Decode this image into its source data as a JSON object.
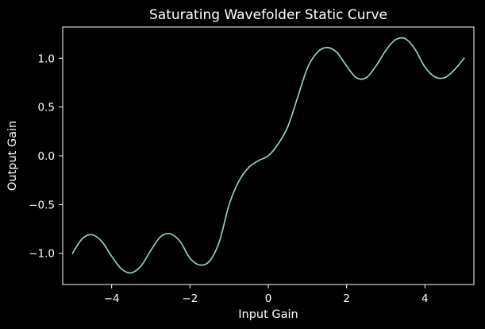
{
  "chart_data": {
    "type": "line",
    "title": "Saturating Wavefolder Static Curve",
    "xlabel": "Input Gain",
    "ylabel": "Output Gain",
    "xlim": [
      -5.25,
      5.25
    ],
    "ylim": [
      -1.32,
      1.32
    ],
    "xticks": [
      -4,
      -2,
      0,
      2,
      4
    ],
    "xtick_labels": [
      "−4",
      "−2",
      "0",
      "2",
      "4"
    ],
    "yticks": [
      -1.0,
      -0.5,
      0.0,
      0.5,
      1.0
    ],
    "ytick_labels": [
      "−1.0",
      "−0.5",
      "0.0",
      "0.5",
      "1.0"
    ],
    "grid": false,
    "series": [
      {
        "color": "#8dd3c7",
        "x": [
          -5.0,
          -4.75,
          -4.5,
          -4.25,
          -4.0,
          -3.75,
          -3.5,
          -3.25,
          -3.0,
          -2.75,
          -2.5,
          -2.25,
          -2.0,
          -1.75,
          -1.5,
          -1.25,
          -1.0,
          -0.75,
          -0.5,
          -0.25,
          0.0,
          0.25,
          0.5,
          0.75,
          1.0,
          1.25,
          1.5,
          1.75,
          2.0,
          2.25,
          2.5,
          2.75,
          3.0,
          3.25,
          3.5,
          3.75,
          4.0,
          4.25,
          4.5,
          4.75,
          5.0
        ],
        "y": [
          -1.0,
          -0.85,
          -0.81,
          -0.88,
          -1.03,
          -1.16,
          -1.2,
          -1.13,
          -0.97,
          -0.83,
          -0.8,
          -0.88,
          -1.05,
          -1.12,
          -1.08,
          -0.88,
          -0.5,
          -0.26,
          -0.12,
          -0.05,
          0.0,
          0.12,
          0.3,
          0.6,
          0.9,
          1.06,
          1.11,
          1.06,
          0.92,
          0.8,
          0.8,
          0.92,
          1.08,
          1.19,
          1.2,
          1.09,
          0.91,
          0.81,
          0.8,
          0.88,
          1.0
        ]
      }
    ]
  }
}
